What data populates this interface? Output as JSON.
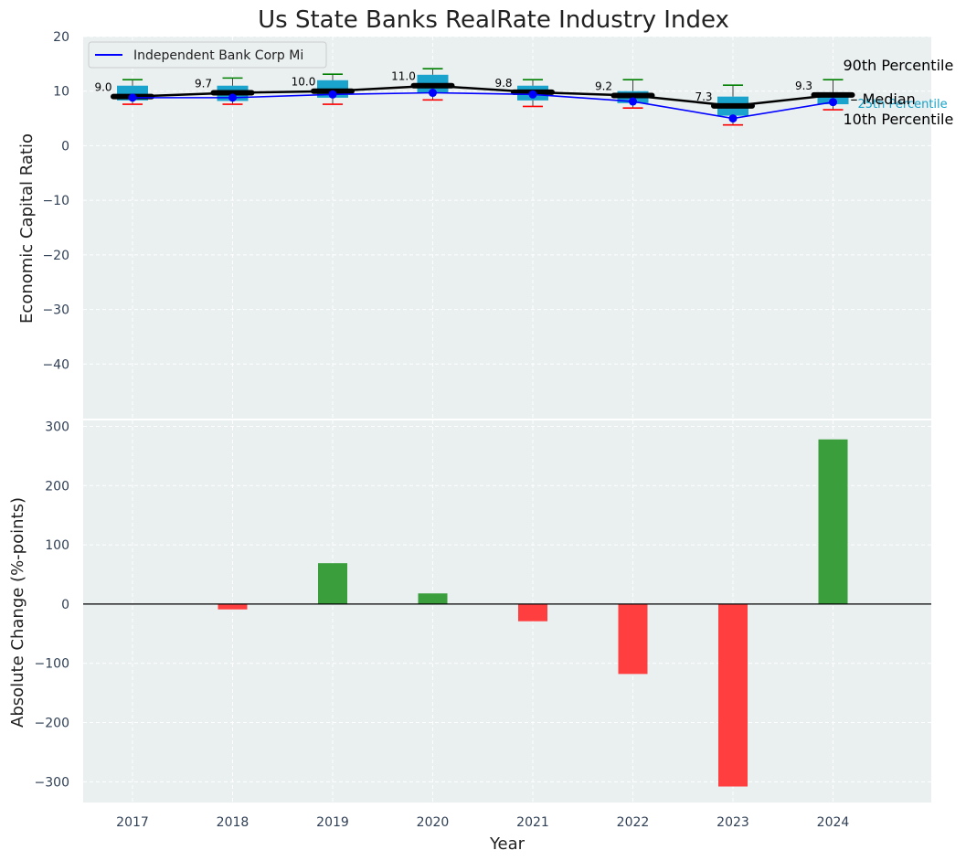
{
  "chart_data": {
    "type": "box-line-bar",
    "title": "Us State Banks RealRate Industry Index",
    "xlabel": "Year",
    "categories": [
      "2017",
      "2018",
      "2019",
      "2020",
      "2021",
      "2022",
      "2023",
      "2024"
    ],
    "top_panel": {
      "ylabel": "Economic Capital Ratio",
      "ylim": [
        -50,
        20
      ],
      "yticks": [
        20,
        10,
        0,
        -10,
        -20,
        -30,
        -40
      ],
      "grid": true,
      "legend_position": "top-left",
      "legend": [
        "Independent Bank Corp Mi"
      ],
      "percentile_labels": [
        "90th Percentile",
        "Median",
        "25th Percentile",
        "10th Percentile"
      ],
      "boxes": [
        {
          "year": "2017",
          "p10": 7.6,
          "p25": 8.3,
          "median": 9.0,
          "p75": 11.0,
          "p90": 12.1
        },
        {
          "year": "2018",
          "p10": 7.6,
          "p25": 8.2,
          "median": 9.7,
          "p75": 11.0,
          "p90": 12.4
        },
        {
          "year": "2019",
          "p10": 7.6,
          "p25": 8.8,
          "median": 10.0,
          "p75": 12.0,
          "p90": 13.1
        },
        {
          "year": "2020",
          "p10": 8.4,
          "p25": 9.7,
          "median": 11.0,
          "p75": 13.0,
          "p90": 14.1
        },
        {
          "year": "2021",
          "p10": 7.2,
          "p25": 8.3,
          "median": 9.8,
          "p75": 11.0,
          "p90": 12.1
        },
        {
          "year": "2022",
          "p10": 6.9,
          "p25": 7.8,
          "median": 9.2,
          "p75": 10.0,
          "p90": 12.1
        },
        {
          "year": "2023",
          "p10": 3.8,
          "p25": 5.5,
          "median": 7.3,
          "p75": 9.0,
          "p90": 11.1
        },
        {
          "year": "2024",
          "p10": 6.6,
          "p25": 7.6,
          "median": 9.3,
          "p75": 9.8,
          "p90": 12.1
        }
      ],
      "median_labels": [
        "9.0",
        "9.7",
        "10.0",
        "11.0",
        "9.8",
        "9.2",
        "7.3",
        "9.3"
      ],
      "series": [
        {
          "name": "Independent Bank Corp Mi",
          "values": [
            8.8,
            8.8,
            9.4,
            9.7,
            9.4,
            8.1,
            5.0,
            8.0
          ]
        }
      ],
      "colors": {
        "box": "#1aa3cc",
        "median_line": "#000000",
        "company_line": "#0000ff",
        "p90_whisker": "#008000",
        "p10_whisker": "#ff0000"
      }
    },
    "bottom_panel": {
      "ylabel": "Absolute Change (%-points)",
      "ylim": [
        -335,
        310
      ],
      "yticks": [
        300,
        200,
        100,
        0,
        -100,
        -200,
        -300
      ],
      "grid": true,
      "values": [
        0,
        -9,
        69,
        18,
        -29,
        -118,
        -308,
        278
      ],
      "colors": {
        "positive": "#3a9e3c",
        "negative": "#ff3f3f"
      }
    }
  }
}
